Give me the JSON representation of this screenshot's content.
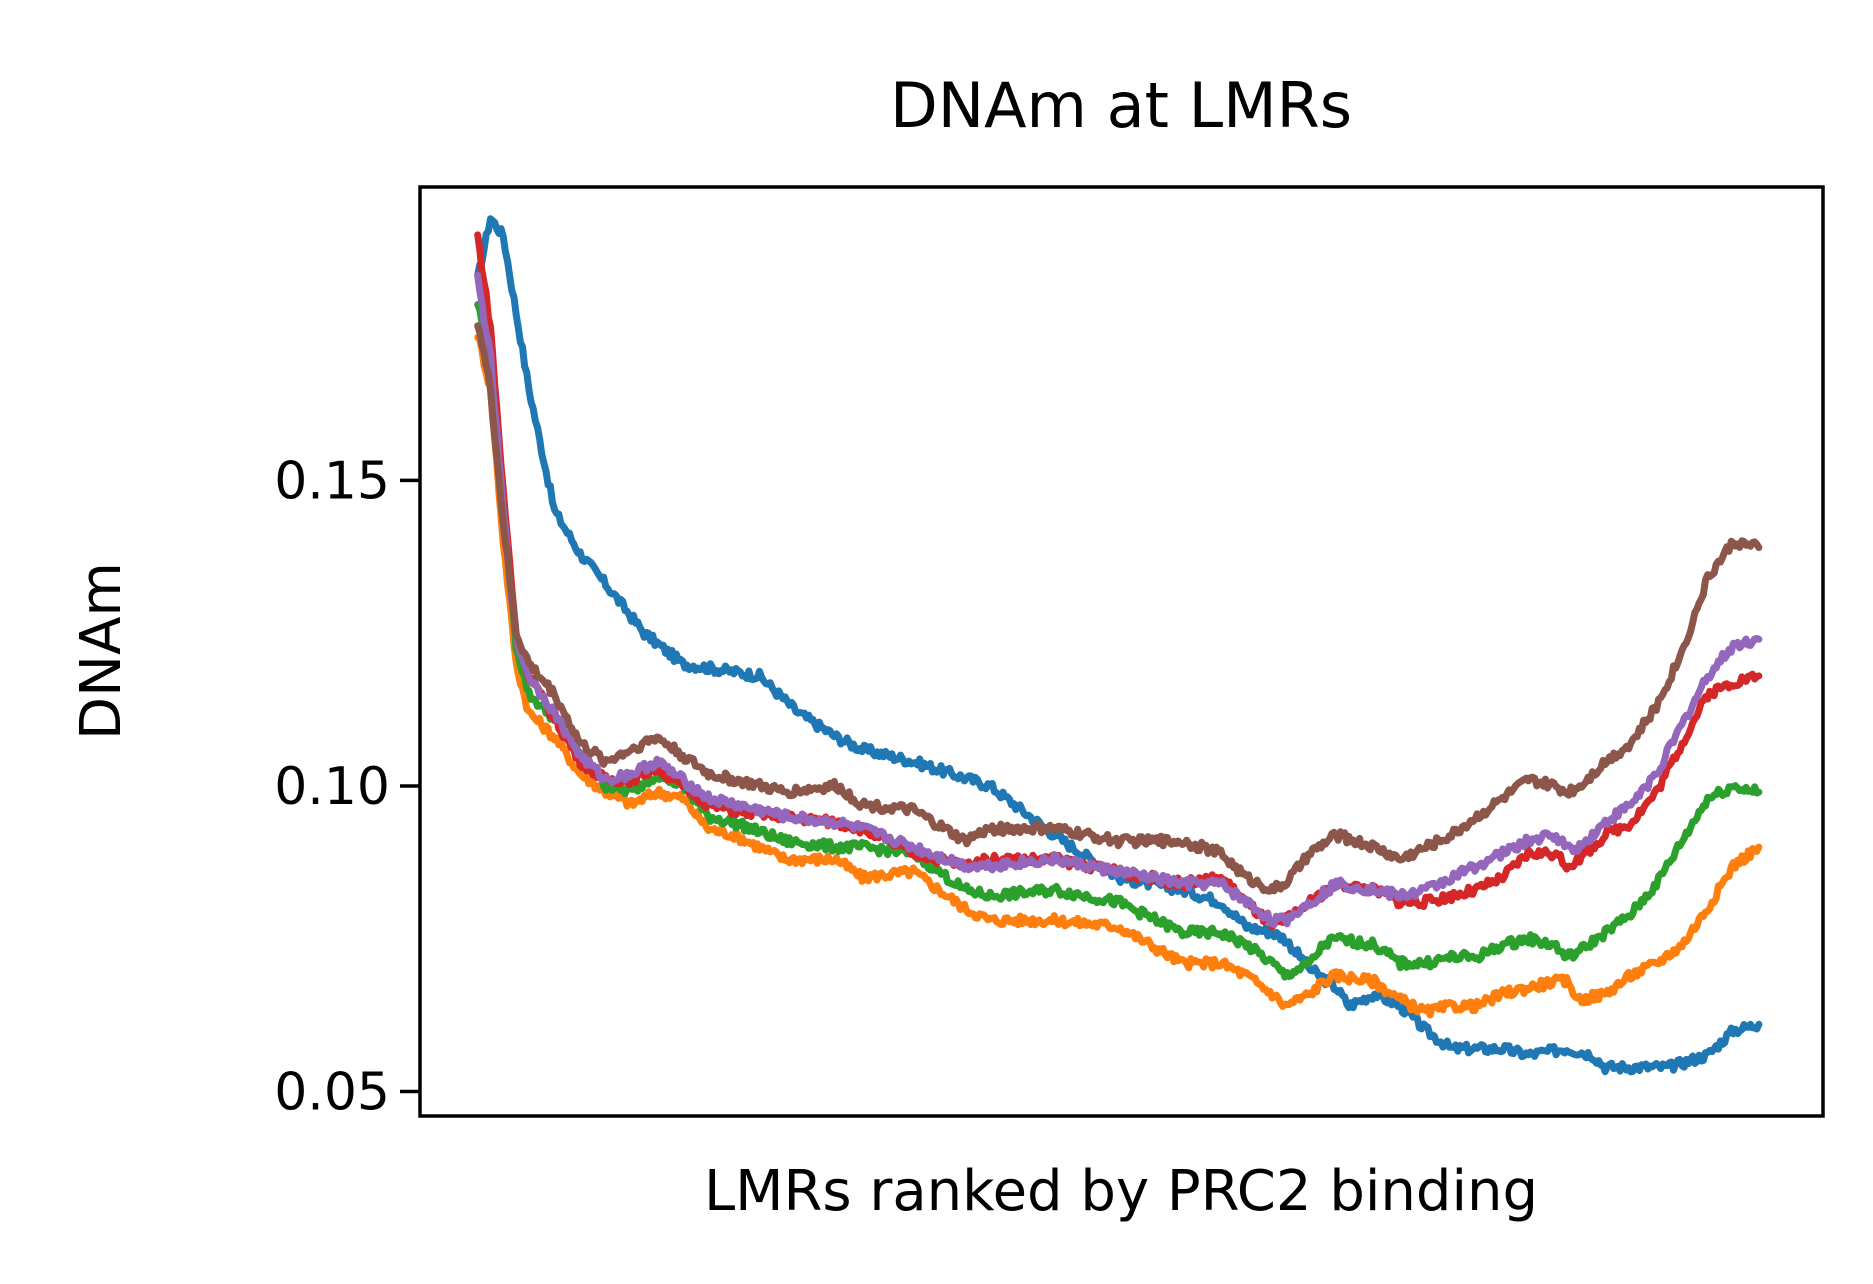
{
  "chart_data": {
    "type": "line",
    "title": "DNAm at LMRs",
    "xlabel": "LMRs ranked by PRC2 binding",
    "ylabel": "DNAm",
    "ylim": [
      0.046,
      0.198
    ],
    "yticks": [
      {
        "value": 0.05,
        "label": "0.05"
      },
      {
        "value": 0.1,
        "label": "0.10"
      },
      {
        "value": 0.15,
        "label": "0.15"
      }
    ],
    "xticks": [],
    "grid": false,
    "legend": "none",
    "xrange": [
      0,
      100
    ],
    "xlim": [
      -4.5,
      105
    ],
    "series": [
      {
        "color": "#1f77b4",
        "x": [
          0,
          1,
          2,
          4,
          6,
          8,
          10,
          13,
          16,
          19,
          22,
          25,
          28,
          30,
          34,
          40,
          45,
          50,
          55,
          58,
          60,
          62,
          63,
          65,
          67,
          68,
          70,
          72,
          74,
          76,
          80,
          82,
          85,
          87,
          88,
          90,
          93,
          96,
          98,
          100
        ],
        "y": [
          0.183,
          0.193,
          0.19,
          0.165,
          0.145,
          0.138,
          0.133,
          0.125,
          0.12,
          0.119,
          0.118,
          0.112,
          0.108,
          0.106,
          0.104,
          0.1,
          0.092,
          0.085,
          0.083,
          0.081,
          0.077,
          0.076,
          0.075,
          0.07,
          0.067,
          0.064,
          0.066,
          0.064,
          0.06,
          0.057,
          0.057,
          0.056,
          0.057,
          0.056,
          0.054,
          0.054,
          0.054,
          0.056,
          0.06,
          0.061
        ]
      },
      {
        "color": "#ff7f0e",
        "x": [
          0,
          1,
          2,
          3,
          4,
          6,
          8,
          10,
          12,
          14,
          16,
          18,
          20,
          24,
          28,
          30,
          34,
          38,
          40,
          45,
          50,
          55,
          58,
          60,
          62,
          63,
          65,
          66,
          67,
          70,
          72,
          74,
          76,
          78,
          80,
          82,
          84,
          85,
          86,
          88,
          90,
          92,
          94,
          96,
          98,
          100
        ],
        "y": [
          0.174,
          0.165,
          0.14,
          0.12,
          0.112,
          0.108,
          0.102,
          0.099,
          0.097,
          0.099,
          0.098,
          0.093,
          0.092,
          0.088,
          0.088,
          0.085,
          0.086,
          0.08,
          0.078,
          0.078,
          0.077,
          0.071,
          0.071,
          0.069,
          0.066,
          0.064,
          0.066,
          0.068,
          0.069,
          0.068,
          0.065,
          0.063,
          0.064,
          0.064,
          0.066,
          0.067,
          0.068,
          0.068,
          0.065,
          0.066,
          0.069,
          0.071,
          0.074,
          0.08,
          0.087,
          0.09
        ]
      },
      {
        "color": "#2ca02c",
        "x": [
          0,
          1,
          2,
          3,
          4,
          6,
          8,
          10,
          12,
          14,
          16,
          18,
          20,
          24,
          28,
          30,
          34,
          38,
          40,
          45,
          50,
          55,
          58,
          60,
          62,
          63,
          65,
          66,
          67,
          70,
          72,
          74,
          76,
          78,
          80,
          82,
          84,
          85,
          86,
          88,
          90,
          92,
          94,
          96,
          98,
          100
        ],
        "y": [
          0.179,
          0.17,
          0.145,
          0.123,
          0.115,
          0.111,
          0.105,
          0.1,
          0.099,
          0.102,
          0.1,
          0.095,
          0.094,
          0.091,
          0.09,
          0.09,
          0.089,
          0.083,
          0.082,
          0.083,
          0.081,
          0.076,
          0.076,
          0.074,
          0.071,
          0.069,
          0.071,
          0.074,
          0.075,
          0.074,
          0.071,
          0.071,
          0.072,
          0.072,
          0.074,
          0.075,
          0.074,
          0.072,
          0.073,
          0.076,
          0.079,
          0.084,
          0.091,
          0.098,
          0.1,
          0.099
        ]
      },
      {
        "color": "#d62728",
        "x": [
          0,
          1,
          2,
          3,
          4,
          6,
          8,
          10,
          12,
          14,
          16,
          18,
          20,
          24,
          28,
          30,
          34,
          38,
          40,
          45,
          50,
          55,
          58,
          60,
          62,
          63,
          65,
          67,
          70,
          72,
          74,
          76,
          78,
          80,
          82,
          84,
          85,
          86,
          88,
          90,
          92,
          94,
          96,
          98,
          100
        ],
        "y": [
          0.19,
          0.175,
          0.148,
          0.125,
          0.118,
          0.111,
          0.104,
          0.101,
          0.101,
          0.103,
          0.1,
          0.097,
          0.096,
          0.095,
          0.094,
          0.093,
          0.089,
          0.087,
          0.088,
          0.088,
          0.086,
          0.084,
          0.085,
          0.081,
          0.077,
          0.078,
          0.081,
          0.084,
          0.083,
          0.081,
          0.081,
          0.082,
          0.083,
          0.085,
          0.089,
          0.089,
          0.087,
          0.088,
          0.092,
          0.094,
          0.099,
          0.107,
          0.115,
          0.117,
          0.118
        ]
      },
      {
        "color": "#9467bd",
        "x": [
          0,
          1,
          2,
          3,
          4,
          6,
          8,
          10,
          12,
          14,
          16,
          18,
          20,
          24,
          28,
          30,
          34,
          38,
          40,
          45,
          50,
          55,
          58,
          60,
          62,
          63,
          65,
          67,
          70,
          72,
          74,
          76,
          78,
          80,
          82,
          84,
          85,
          86,
          88,
          90,
          92,
          94,
          96,
          98,
          100
        ],
        "y": [
          0.183,
          0.17,
          0.145,
          0.124,
          0.118,
          0.112,
          0.105,
          0.101,
          0.102,
          0.104,
          0.101,
          0.098,
          0.097,
          0.095,
          0.094,
          0.093,
          0.09,
          0.087,
          0.087,
          0.088,
          0.086,
          0.084,
          0.084,
          0.081,
          0.078,
          0.078,
          0.081,
          0.084,
          0.083,
          0.082,
          0.083,
          0.085,
          0.087,
          0.089,
          0.091,
          0.092,
          0.09,
          0.09,
          0.094,
          0.097,
          0.102,
          0.11,
          0.118,
          0.123,
          0.124
        ]
      },
      {
        "color": "#8c564b",
        "x": [
          0,
          1,
          2,
          3,
          4,
          6,
          8,
          10,
          12,
          14,
          16,
          18,
          20,
          24,
          28,
          30,
          34,
          38,
          40,
          45,
          50,
          55,
          58,
          60,
          62,
          63,
          65,
          67,
          70,
          72,
          74,
          76,
          78,
          80,
          82,
          84,
          85,
          86,
          88,
          90,
          92,
          94,
          96,
          98,
          100
        ],
        "y": [
          0.176,
          0.165,
          0.143,
          0.125,
          0.12,
          0.115,
          0.107,
          0.104,
          0.106,
          0.108,
          0.105,
          0.102,
          0.101,
          0.099,
          0.1,
          0.097,
          0.096,
          0.091,
          0.093,
          0.093,
          0.091,
          0.091,
          0.089,
          0.085,
          0.083,
          0.084,
          0.089,
          0.092,
          0.09,
          0.088,
          0.09,
          0.092,
          0.095,
          0.098,
          0.101,
          0.1,
          0.099,
          0.1,
          0.104,
          0.107,
          0.113,
          0.122,
          0.134,
          0.14,
          0.139
        ]
      }
    ]
  }
}
